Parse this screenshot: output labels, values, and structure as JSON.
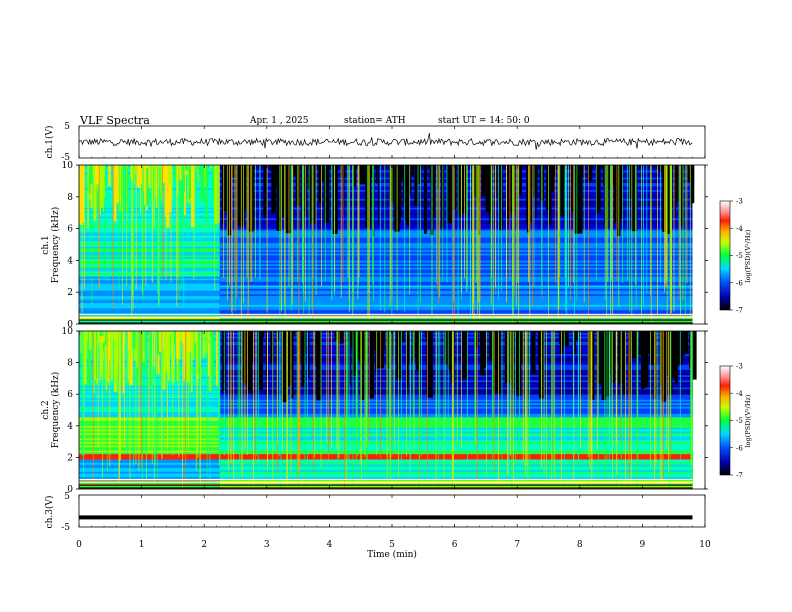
{
  "header": {
    "title": "VLF Spectra",
    "date": "Apr. 1 , 2025",
    "station": "station= ATH",
    "start": "start UT =  14: 50: 0"
  },
  "colors": {
    "background": "#ffffff",
    "trace": "#000000",
    "spectrogram_low": "#000000",
    "spectrogram_high": "#ff0000"
  },
  "chart_data": [
    {
      "type": "line",
      "panel": "ch1-waveform",
      "ylabel": "ch.1(V)",
      "ylim": [
        -5,
        5
      ],
      "xlim": [
        0,
        10
      ],
      "yticks": [
        "5",
        "-5"
      ],
      "x": [
        0,
        9.8
      ],
      "y": [
        0,
        0
      ]
    },
    {
      "type": "heatmap",
      "panel": "ch1-spectrogram",
      "ylabel": "ch.1\nFrequency (kHz)",
      "ylim": [
        0,
        10
      ],
      "xlim": [
        0,
        9.8
      ],
      "yticks": [
        "0",
        "2",
        "4",
        "6",
        "8",
        "10"
      ],
      "colorbar": {
        "label": "log(PSD)(V²/Hz)",
        "range": [
          -7,
          -3
        ],
        "ticks": [
          "-3",
          "-4",
          "-5",
          "-6",
          "-7"
        ]
      }
    },
    {
      "type": "heatmap",
      "panel": "ch2-spectrogram",
      "ylabel": "ch.2\nFrequency (kHz)",
      "ylim": [
        0,
        10
      ],
      "xlim": [
        0,
        9.8
      ],
      "yticks": [
        "0",
        "2",
        "4",
        "6",
        "8",
        "10"
      ],
      "colorbar": {
        "label": "log(PSD)(V²/Hz)",
        "range": [
          -7,
          -3
        ],
        "ticks": [
          "-3",
          "-4",
          "-5",
          "-6",
          "-7"
        ]
      }
    },
    {
      "type": "line",
      "panel": "ch3-waveform",
      "ylabel": "ch.3(V)",
      "ylim": [
        -5,
        5
      ],
      "xlim": [
        0,
        10
      ],
      "yticks": [
        "5",
        "-5"
      ],
      "x": [
        0,
        9.8
      ],
      "y": [
        -2,
        -2
      ]
    }
  ],
  "xaxis": {
    "label": "Time (min)",
    "ticks": [
      "0",
      "1",
      "2",
      "3",
      "4",
      "5",
      "6",
      "7",
      "8",
      "9",
      "10"
    ]
  }
}
